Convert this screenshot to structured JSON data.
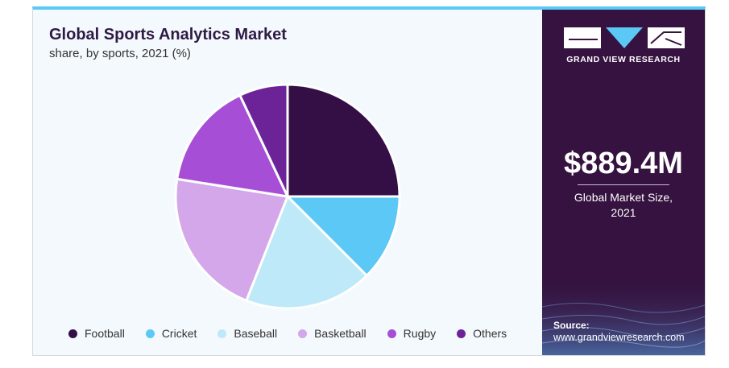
{
  "header": {
    "title": "Global Sports Analytics Market",
    "subtitle": "share, by sports, 2021 (%)"
  },
  "side": {
    "brand": "GRAND VIEW RESEARCH",
    "stat_value": "$889.4M",
    "stat_label_line1": "Global Market Size,",
    "stat_label_line2": "2021",
    "source_label": "Source:",
    "source_url": "www.grandviewresearch.com"
  },
  "colors": {
    "brand_dark": "#35123f",
    "accent_cyan": "#5bc8f5"
  },
  "chart_data": {
    "type": "pie",
    "title": "Global Sports Analytics Market",
    "subtitle": "share, by sports, 2021 (%)",
    "legend_position": "bottom",
    "start_angle_deg": 0,
    "direction": "clockwise",
    "categories": [
      "Football",
      "Cricket",
      "Baseball",
      "Basketball",
      "Rugby",
      "Others"
    ],
    "values": [
      25.0,
      12.5,
      18.5,
      21.5,
      15.5,
      7.0
    ],
    "colors": [
      "#330f45",
      "#5bc8f5",
      "#bde9f8",
      "#d4a7ea",
      "#a64fd6",
      "#6d2398"
    ]
  }
}
